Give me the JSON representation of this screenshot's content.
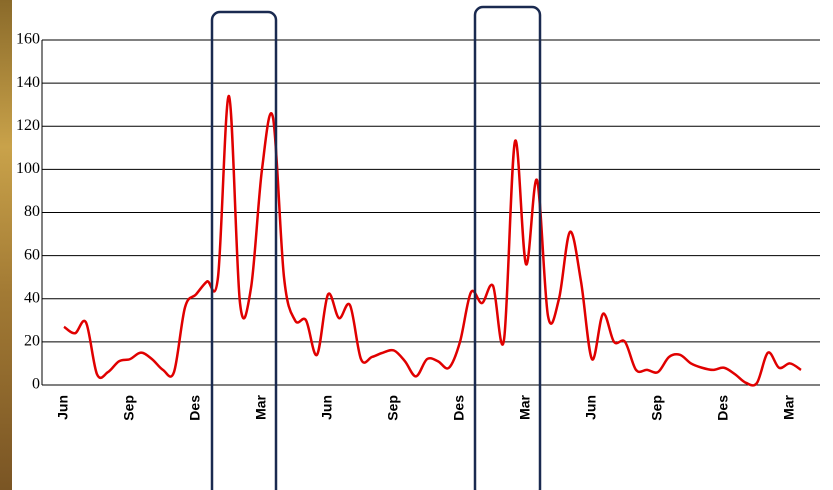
{
  "chart_data": {
    "type": "line",
    "categories": [
      "Jun",
      null,
      null,
      null,
      null,
      null,
      "Sep",
      null,
      null,
      null,
      null,
      null,
      "Des",
      null,
      null,
      null,
      null,
      null,
      "Mar",
      null,
      null,
      null,
      null,
      null,
      "Jun",
      null,
      null,
      null,
      null,
      null,
      "Sep",
      null,
      null,
      null,
      null,
      null,
      "Des",
      null,
      null,
      null,
      null,
      null,
      "Mar",
      null,
      null,
      null,
      null,
      null,
      "Jun",
      null,
      null,
      null,
      null,
      null,
      "Sep",
      null,
      null,
      null,
      null,
      null,
      "Des",
      null,
      null,
      null,
      null,
      null,
      "Mar",
      null
    ],
    "values": [
      27,
      24,
      29,
      5,
      6,
      11,
      12,
      15,
      12,
      7,
      6,
      36,
      42,
      48,
      50,
      134,
      38,
      45,
      100,
      124,
      50,
      30,
      30,
      14,
      42,
      31,
      37,
      12,
      13,
      15,
      16,
      11,
      4,
      12,
      11,
      8,
      20,
      43,
      38,
      46,
      21,
      113,
      56,
      95,
      32,
      40,
      71,
      48,
      12,
      33,
      20,
      20,
      7,
      7,
      6,
      13,
      14,
      10,
      8,
      7,
      8,
      5,
      1,
      1,
      15,
      8,
      10,
      7
    ],
    "color": "#e00000",
    "ylim": [
      0,
      160
    ],
    "yticks": [
      0,
      20,
      40,
      60,
      80,
      100,
      120,
      140,
      160
    ],
    "grid": true
  }
}
